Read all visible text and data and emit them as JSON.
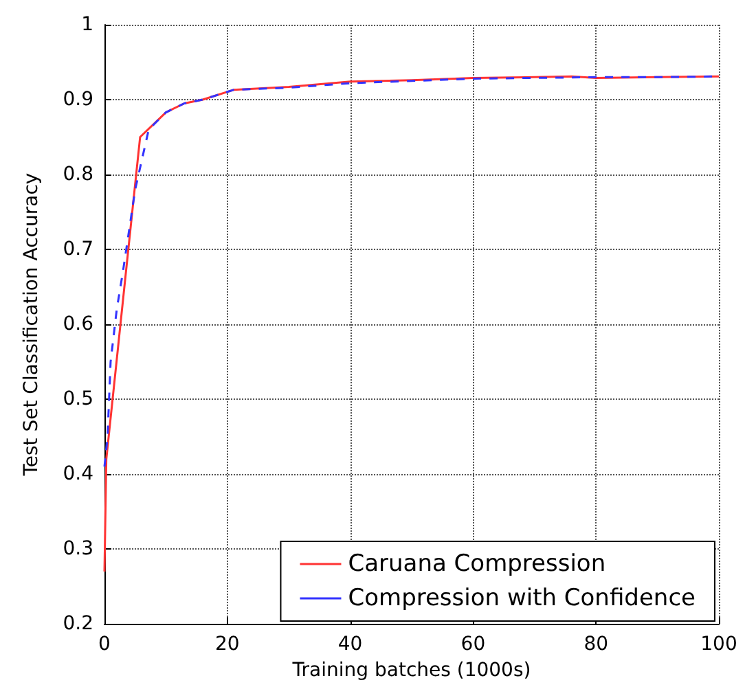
{
  "chart_data": {
    "type": "line",
    "xlabel": "Training batches (1000s)",
    "ylabel": "Test Set Classification Accuracy",
    "xlim": [
      0,
      100
    ],
    "xticks": [
      0,
      20,
      40,
      60,
      80,
      100
    ],
    "ylim": [
      0.2,
      1.0
    ],
    "yticks": [
      0.2,
      0.3,
      0.4,
      0.5,
      0.6,
      0.7,
      0.8,
      0.9,
      1.0
    ],
    "grid": true,
    "legend": "bottom right",
    "marker": "none",
    "series": [
      {
        "name": "Caruana Compression",
        "color": "#ff3333",
        "line_style": "solid",
        "x": [
          0,
          0.3,
          5.8,
          10,
          13,
          16,
          21,
          30,
          40,
          50,
          60,
          70,
          76,
          80,
          90,
          100
        ],
        "values": [
          0.27,
          0.42,
          0.85,
          0.883,
          0.895,
          0.9,
          0.913,
          0.917,
          0.924,
          0.926,
          0.929,
          0.93,
          0.931,
          0.929,
          0.93,
          0.931
        ]
      },
      {
        "name": "Compression with Confidence",
        "color": "#3333ff",
        "line_style": "dashed",
        "x": [
          0,
          0.5,
          1,
          2,
          3,
          5,
          7.2,
          10,
          13,
          16,
          21,
          30,
          40,
          50,
          60,
          70,
          80,
          90,
          100
        ],
        "values": [
          0.41,
          0.45,
          0.55,
          0.62,
          0.67,
          0.78,
          0.86,
          0.883,
          0.895,
          0.9,
          0.913,
          0.916,
          0.922,
          0.925,
          0.928,
          0.929,
          0.93,
          0.93,
          0.931
        ]
      }
    ]
  }
}
